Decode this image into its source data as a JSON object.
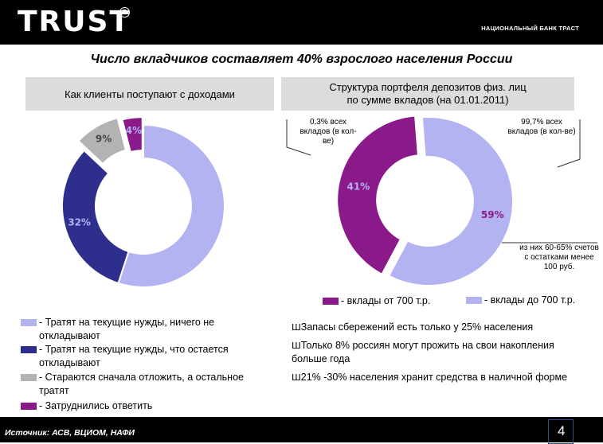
{
  "header": {
    "logo_text": "TRUST",
    "registered_mark": "R",
    "bank_name": "НАЦИОНАЛЬНЫЙ БАНК ТРАСТ"
  },
  "title": "Число вкладчиков составляет 40% взрослого населения России",
  "left_chart": {
    "heading": "Как клиенты поступают с доходами",
    "legend": [
      {
        "text": "- Тратят на текущие нужды, ничего не откладывают",
        "color": "#b3b3f2"
      },
      {
        "text": "- Тратят на текущие нужды, что остается откладывают",
        "color": "#2e2e8c"
      },
      {
        "text": "- Стараются сначала отложить, а остальное тратят",
        "color": "#b3b3b3"
      },
      {
        "text": "- Затруднились ответить",
        "color": "#8a1a8a"
      }
    ]
  },
  "right_chart": {
    "heading": "Структура портфеля депозитов физ. лиц по сумме вкладов (на 01.01.2011)",
    "callout_left": "0,3% всех вкладов (в кол-ве)",
    "callout_right": "99,7% всех вкладов (в кол-ве)",
    "callout_bottom": "из них 60-65% счетов с остатками менее 100 руб.",
    "legend": [
      {
        "text": "- вклады от 700 т.р.",
        "color": "#8a1a8a"
      },
      {
        "text": "- вклады до 700 т.р.",
        "color": "#b3b3f2"
      }
    ]
  },
  "chart_data": [
    {
      "type": "pie",
      "title": "Как клиенты поступают с доходами",
      "categories": [
        "Тратят на текущие нужды, ничего не откладывают",
        "Тратят на текущие нужды, что остается откладывают",
        "Стараются сначала отложить, а остальное тратят",
        "Затруднились ответить"
      ],
      "values": [
        55,
        32,
        9,
        4
      ],
      "labels": [
        "55%",
        "32%",
        "9%",
        "4%"
      ],
      "colors": [
        "#b3b3f2",
        "#2e2e8c",
        "#b3b3b3",
        "#8a1a8a"
      ],
      "legend": "bottom-left"
    },
    {
      "type": "pie",
      "title": "Структура портфеля депозитов физ. лиц по сумме вкладов (на 01.01.2011)",
      "categories": [
        "вклады от 700 т.р.",
        "вклады до 700 т.р."
      ],
      "values": [
        41,
        59
      ],
      "labels": [
        "41%",
        "59%"
      ],
      "colors": [
        "#8a1a8a",
        "#b3b3f2"
      ],
      "legend": "bottom"
    }
  ],
  "bullets": [
    {
      "marker": "Ш",
      "text": "Запасы сбережений есть только у 25% населения"
    },
    {
      "marker": "Ш",
      "text": "Только 8% россиян могут прожить на свои накопления больше года"
    },
    {
      "marker": "Ш",
      "text": "21% -30% населения хранит средства в наличной форме"
    }
  ],
  "footer": {
    "source": "Источник: АСВ, ВЦИОМ, НАФИ",
    "page_number": "4"
  }
}
